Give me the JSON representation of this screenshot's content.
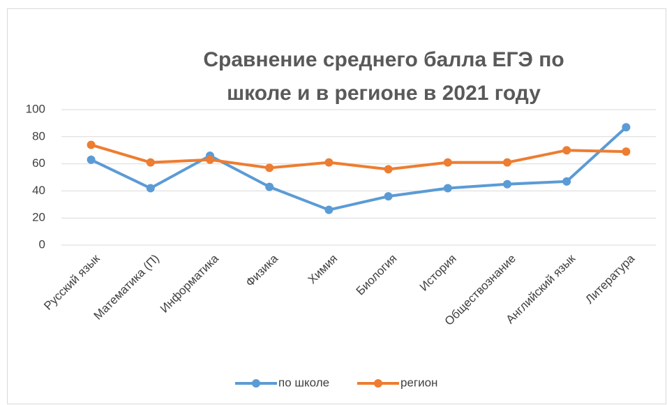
{
  "chart_data": {
    "type": "line",
    "title": "Сравнение среднего балла ЕГЭ по школе и в регионе в 2021 году",
    "categories": [
      "Русский язык",
      "Математика (П)",
      "Информатика",
      "Физика",
      "Химия",
      "Биология",
      "История",
      "Обществознание",
      "Английский язык",
      "Литература"
    ],
    "series": [
      {
        "name": "по школе",
        "color": "#5b9bd5",
        "values": [
          63,
          42,
          66,
          43,
          26,
          36,
          42,
          45,
          47,
          87
        ]
      },
      {
        "name": "регион",
        "color": "#ed7d31",
        "values": [
          74,
          61,
          63,
          57,
          61,
          56,
          61,
          61,
          70,
          69
        ]
      }
    ],
    "ylim": [
      0,
      100
    ],
    "yticks": [
      0,
      20,
      40,
      60,
      80,
      100
    ],
    "grid": true,
    "legend": "bottom"
  }
}
